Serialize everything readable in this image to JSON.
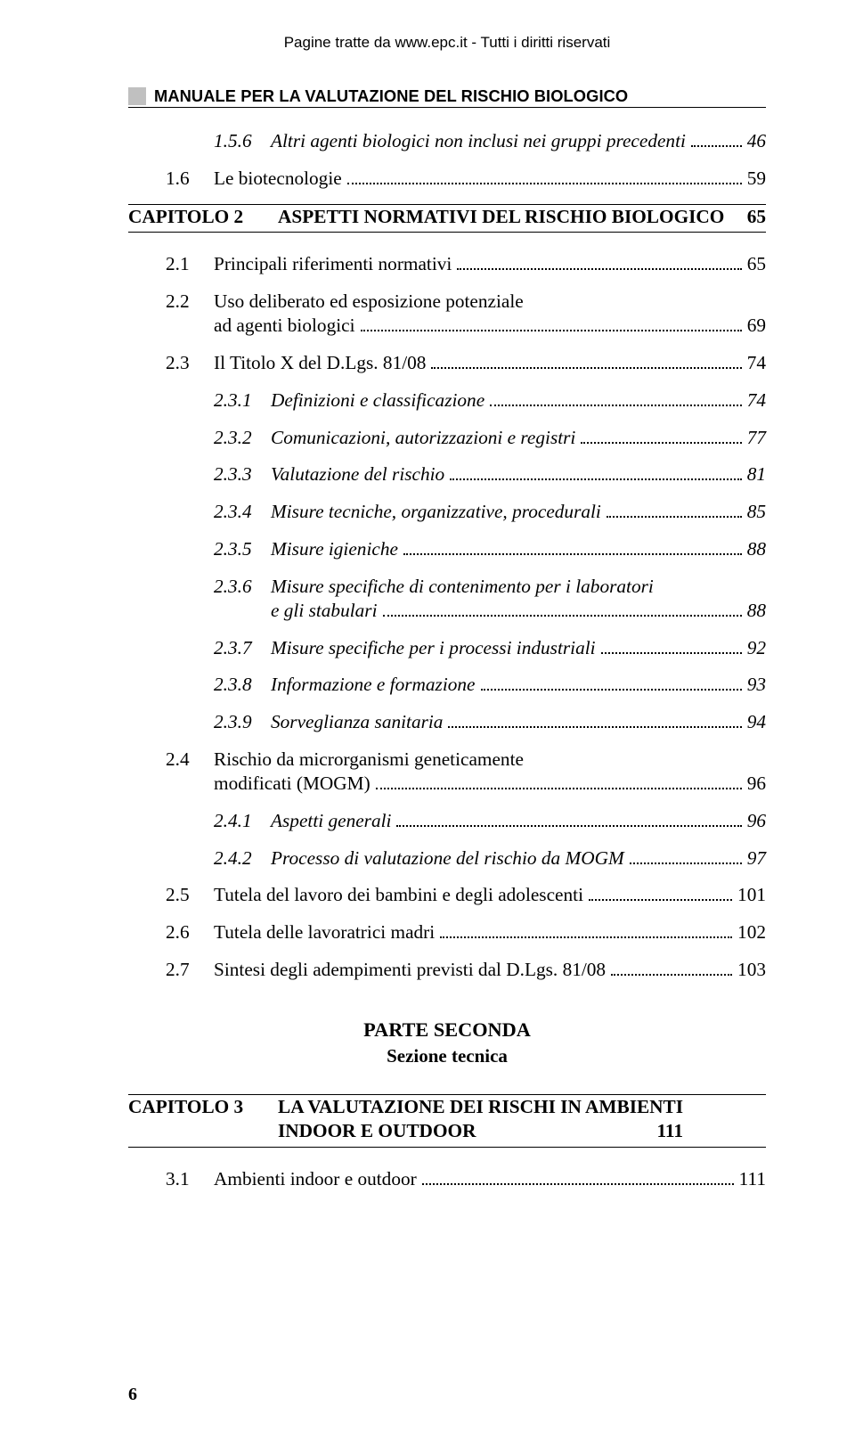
{
  "header_copyright": "Pagine tratte da www.epc.it - Tutti i diritti riservati",
  "manual_title": "MANUALE PER LA VALUTAZIONE DEL RISCHIO BIOLOGICO",
  "toc_pre": [
    {
      "lvl": 3,
      "num": "1.5.6",
      "label": "Altri agenti biologici non inclusi nei gruppi precedenti",
      "page": "46"
    },
    {
      "lvl": 2,
      "num": "1.6",
      "label": "Le biotecnologie",
      "page": "59"
    }
  ],
  "cap2": {
    "cap": "CAPITOLO 2",
    "title": "ASPETTI NORMATIVI DEL RISCHIO BIOLOGICO",
    "page": "65"
  },
  "toc_cap2": [
    {
      "lvl": 2,
      "num": "2.1",
      "label": "Principali riferimenti normativi",
      "page": "65"
    },
    {
      "lvl": 2,
      "num": "2.2",
      "label_lines": [
        "Uso deliberato ed esposizione potenziale",
        "ad agenti biologici"
      ],
      "page": "69"
    },
    {
      "lvl": 2,
      "num": "2.3",
      "label": "Il Titolo X del D.Lgs. 81/08",
      "page": "74"
    },
    {
      "lvl": 3,
      "num": "2.3.1",
      "label": "Definizioni e classificazione",
      "page": "74"
    },
    {
      "lvl": 3,
      "num": "2.3.2",
      "label": "Comunicazioni, autorizzazioni e registri",
      "page": "77"
    },
    {
      "lvl": 3,
      "num": "2.3.3",
      "label": "Valutazione del rischio",
      "page": "81"
    },
    {
      "lvl": 3,
      "num": "2.3.4",
      "label": "Misure tecniche, organizzative, procedurali",
      "page": "85"
    },
    {
      "lvl": 3,
      "num": "2.3.5",
      "label": "Misure igieniche",
      "page": "88"
    },
    {
      "lvl": 3,
      "num": "2.3.6",
      "label_lines": [
        "Misure specifiche di contenimento per i laboratori",
        "e gli stabulari"
      ],
      "page": "88"
    },
    {
      "lvl": 3,
      "num": "2.3.7",
      "label": "Misure specifiche per i processi industriali",
      "page": "92"
    },
    {
      "lvl": 3,
      "num": "2.3.8",
      "label": "Informazione e formazione",
      "page": "93"
    },
    {
      "lvl": 3,
      "num": "2.3.9",
      "label": "Sorveglianza sanitaria",
      "page": "94"
    },
    {
      "lvl": 2,
      "num": "2.4",
      "label_lines": [
        "Rischio da microrganismi geneticamente",
        "modificati (MOGM)"
      ],
      "page": " 96"
    },
    {
      "lvl": 3,
      "num": "2.4.1",
      "label": "Aspetti generali",
      "page": "96"
    },
    {
      "lvl": 3,
      "num": "2.4.2",
      "label": "Processo di valutazione del rischio da MOGM",
      "page": "97"
    },
    {
      "lvl": 2,
      "num": "2.5",
      "label": "Tutela del lavoro dei bambini e degli adolescenti",
      "page": "101"
    },
    {
      "lvl": 2,
      "num": "2.6",
      "label": "Tutela delle lavoratrici madri",
      "page": "102"
    },
    {
      "lvl": 2,
      "num": "2.7",
      "label": "Sintesi degli adempimenti previsti dal D.Lgs. 81/08",
      "page": "103"
    }
  ],
  "parte": {
    "main": "PARTE SECONDA",
    "sub": "Sezione tecnica"
  },
  "cap3": {
    "cap": "CAPITOLO 3",
    "title_lines": [
      "LA VALUTAZIONE DEI RISCHI IN AMBIENTI",
      "INDOOR E OUTDOOR"
    ],
    "page": "111"
  },
  "toc_cap3": [
    {
      "lvl": 2,
      "num": "3.1",
      "label": "Ambienti indoor e outdoor",
      "page": "111"
    }
  ],
  "footer_page": "6",
  "colors": {
    "block": "#c0c0c0",
    "text": "#000000",
    "bg": "#ffffff"
  },
  "fonts": {
    "body": "Book Antiqua / Palatino",
    "header": "Arial",
    "base_pt": 16
  }
}
